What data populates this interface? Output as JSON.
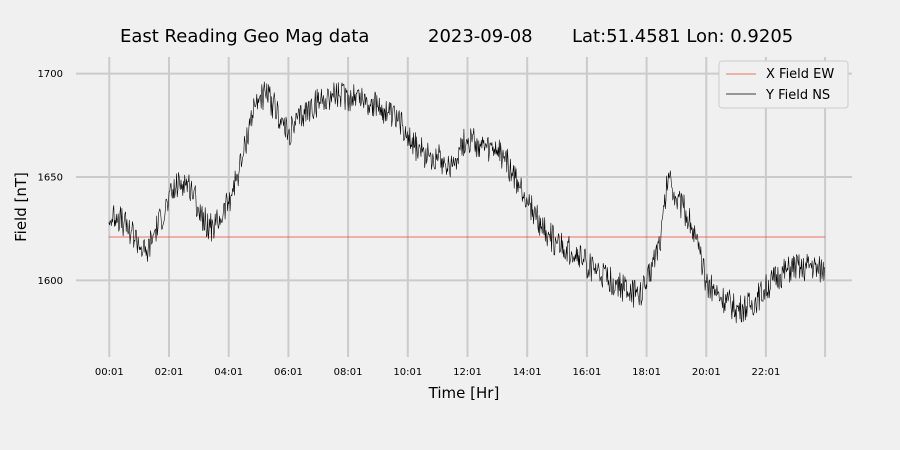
{
  "chart_data": {
    "type": "line",
    "title_parts": [
      "East Reading Geo Mag data",
      "2023-09-08",
      "Lat:51.4581  Lon: 0.9205"
    ],
    "xlabel": "Time  [Hr]",
    "ylabel": "Field  [nT]",
    "x_unit": "hours",
    "x_ticks": [
      {
        "value": 0.0167,
        "label": "00:01"
      },
      {
        "value": 2.0167,
        "label": "02:01"
      },
      {
        "value": 4.0167,
        "label": "04:01"
      },
      {
        "value": 6.0167,
        "label": "06:01"
      },
      {
        "value": 8.0167,
        "label": "08:01"
      },
      {
        "value": 10.0167,
        "label": "10:01"
      },
      {
        "value": 12.0167,
        "label": "12:01"
      },
      {
        "value": 14.0167,
        "label": "14:01"
      },
      {
        "value": 16.0167,
        "label": "16:01"
      },
      {
        "value": 18.0167,
        "label": "18:01"
      },
      {
        "value": 20.0167,
        "label": "20:01"
      },
      {
        "value": 22.0167,
        "label": "22:01"
      },
      {
        "value": 24.0,
        "label": ""
      }
    ],
    "y_ticks": [
      1600,
      1650,
      1700
    ],
    "xlim": [
      -1.1,
      24.9
    ],
    "ylim": [
      1563,
      1708
    ],
    "grid": true,
    "legend_position": "top-right",
    "series": [
      {
        "name": "X Field EW",
        "color": "#e24a33",
        "x": [
          0,
          24
        ],
        "y": [
          1621,
          1621
        ]
      },
      {
        "name": "Y Field NS",
        "color": "#000000",
        "x": [
          0,
          0.25,
          0.5,
          0.75,
          1,
          1.25,
          1.5,
          1.75,
          2,
          2.25,
          2.5,
          2.75,
          3,
          3.25,
          3.5,
          3.75,
          4,
          4.25,
          4.5,
          4.75,
          5,
          5.25,
          5.5,
          5.75,
          6,
          6.25,
          6.5,
          6.75,
          7,
          7.25,
          7.5,
          7.75,
          8,
          8.25,
          8.5,
          8.75,
          9,
          9.25,
          9.5,
          9.75,
          10,
          10.25,
          10.5,
          10.75,
          11,
          11.25,
          11.5,
          11.75,
          12,
          12.25,
          12.5,
          12.75,
          13,
          13.25,
          13.5,
          13.75,
          14,
          14.25,
          14.5,
          14.75,
          15,
          15.25,
          15.5,
          15.75,
          16,
          16.25,
          16.5,
          16.75,
          17,
          17.25,
          17.5,
          17.75,
          18,
          18.25,
          18.5,
          18.75,
          19,
          19.25,
          19.5,
          19.75,
          20,
          20.25,
          20.5,
          20.75,
          21,
          21.25,
          21.5,
          21.75,
          22,
          22.25,
          22.5,
          22.75,
          23,
          23.25,
          23.5,
          23.75,
          24
        ],
        "y": [
          1628,
          1632,
          1627,
          1624,
          1618,
          1612,
          1622,
          1630,
          1638,
          1645,
          1648,
          1645,
          1635,
          1628,
          1625,
          1630,
          1638,
          1648,
          1660,
          1678,
          1688,
          1690,
          1685,
          1678,
          1670,
          1675,
          1680,
          1683,
          1686,
          1688,
          1690,
          1689,
          1688,
          1690,
          1688,
          1685,
          1684,
          1682,
          1678,
          1676,
          1672,
          1665,
          1662,
          1660,
          1661,
          1657,
          1655,
          1664,
          1668,
          1667,
          1664,
          1662,
          1663,
          1660,
          1652,
          1645,
          1640,
          1632,
          1626,
          1622,
          1618,
          1615,
          1614,
          1612,
          1608,
          1605,
          1602,
          1600,
          1598,
          1596,
          1594,
          1592,
          1598,
          1610,
          1622,
          1652,
          1640,
          1635,
          1628,
          1615,
          1600,
          1596,
          1592,
          1590,
          1586,
          1587,
          1588,
          1592,
          1596,
          1600,
          1603,
          1605,
          1607,
          1605,
          1608,
          1605,
          1606
        ]
      }
    ]
  }
}
